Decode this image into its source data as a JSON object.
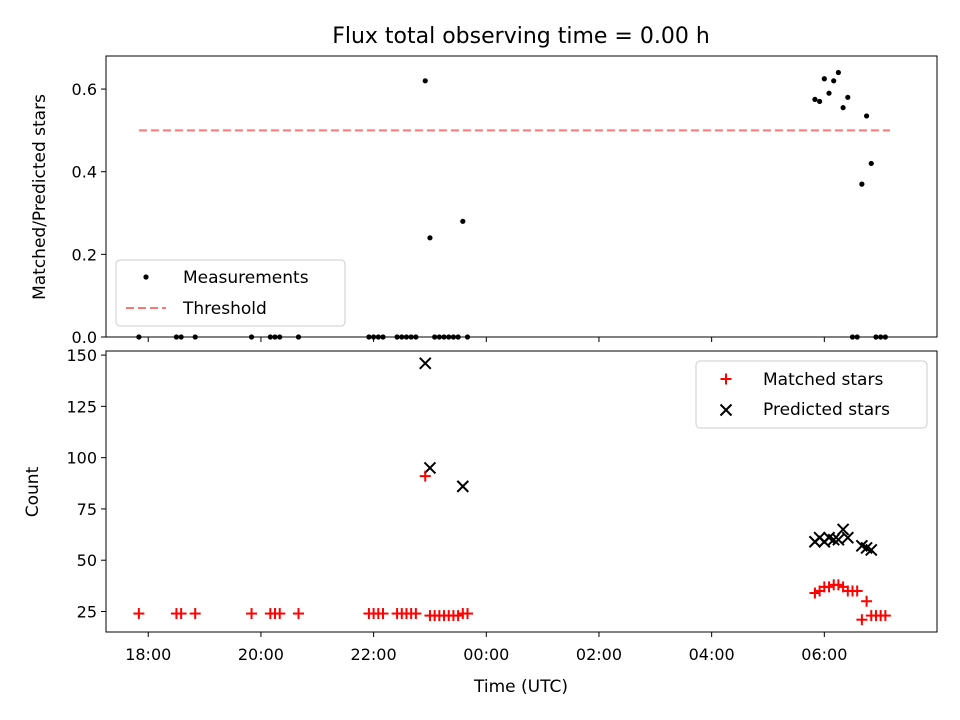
{
  "chart_data": [
    {
      "type": "scatter",
      "title": "Flux total observing time = 0.00 h",
      "ylabel": "Matched/Predicted stars",
      "xlabel": "",
      "ylim": [
        0,
        0.68
      ],
      "yticks": [
        "0.0",
        "0.2",
        "0.4",
        "0.6"
      ],
      "ytick_values": [
        0,
        0.2,
        0.4,
        0.6
      ],
      "legend": {
        "placement": "lower-left",
        "entries": [
          "Measurements",
          "Threshold"
        ]
      },
      "threshold": {
        "name": "Threshold",
        "value": 0.5,
        "x_range": [
          "17:50",
          "07:10"
        ],
        "color": "#ff7777"
      },
      "series": [
        {
          "name": "Measurements",
          "color": "#000000",
          "points": [
            [
              "17:50",
              0.0
            ],
            [
              "18:30",
              0.0
            ],
            [
              "18:35",
              0.0
            ],
            [
              "18:50",
              0.0
            ],
            [
              "19:50",
              0.0
            ],
            [
              "20:10",
              0.0
            ],
            [
              "20:15",
              0.0
            ],
            [
              "20:20",
              0.0
            ],
            [
              "20:40",
              0.0
            ],
            [
              "21:55",
              0.0
            ],
            [
              "22:00",
              0.0
            ],
            [
              "22:05",
              0.0
            ],
            [
              "22:10",
              0.0
            ],
            [
              "22:25",
              0.0
            ],
            [
              "22:30",
              0.0
            ],
            [
              "22:35",
              0.0
            ],
            [
              "22:40",
              0.0
            ],
            [
              "22:45",
              0.0
            ],
            [
              "22:55",
              0.62
            ],
            [
              "23:00",
              0.24
            ],
            [
              "23:05",
              0.0
            ],
            [
              "23:10",
              0.0
            ],
            [
              "23:15",
              0.0
            ],
            [
              "23:20",
              0.0
            ],
            [
              "23:25",
              0.0
            ],
            [
              "23:30",
              0.0
            ],
            [
              "23:35",
              0.28
            ],
            [
              "23:40",
              0.0
            ],
            [
              "05:50",
              0.575
            ],
            [
              "05:55",
              0.57
            ],
            [
              "06:00",
              0.625
            ],
            [
              "06:05",
              0.59
            ],
            [
              "06:10",
              0.62
            ],
            [
              "06:15",
              0.64
            ],
            [
              "06:20",
              0.555
            ],
            [
              "06:25",
              0.58
            ],
            [
              "06:30",
              0.0
            ],
            [
              "06:35",
              0.0
            ],
            [
              "06:40",
              0.37
            ],
            [
              "06:45",
              0.535
            ],
            [
              "06:50",
              0.42
            ],
            [
              "06:55",
              0.0
            ],
            [
              "07:00",
              0.0
            ],
            [
              "07:05",
              0.0
            ]
          ]
        }
      ]
    },
    {
      "type": "scatter",
      "title": "",
      "ylabel": "Count",
      "xlabel": "Time (UTC)",
      "ylim": [
        15,
        152
      ],
      "yticks": [
        "25",
        "50",
        "75",
        "100",
        "125",
        "150"
      ],
      "ytick_values": [
        25,
        50,
        75,
        100,
        125,
        150
      ],
      "xlim": [
        "17:15",
        "08:00"
      ],
      "xticks": [
        "18:00",
        "20:00",
        "22:00",
        "00:00",
        "02:00",
        "04:00",
        "06:00"
      ],
      "legend": {
        "placement": "upper-right",
        "entries": [
          "Matched stars",
          "Predicted stars"
        ]
      },
      "series": [
        {
          "name": "Matched stars",
          "marker": "plus",
          "color": "#ff0000",
          "points": [
            [
              "17:50",
              24
            ],
            [
              "18:30",
              24
            ],
            [
              "18:35",
              24
            ],
            [
              "18:50",
              24
            ],
            [
              "19:50",
              24
            ],
            [
              "20:10",
              24
            ],
            [
              "20:15",
              24
            ],
            [
              "20:20",
              24
            ],
            [
              "20:40",
              24
            ],
            [
              "21:55",
              24
            ],
            [
              "22:00",
              24
            ],
            [
              "22:05",
              24
            ],
            [
              "22:10",
              24
            ],
            [
              "22:25",
              24
            ],
            [
              "22:30",
              24
            ],
            [
              "22:35",
              24
            ],
            [
              "22:40",
              24
            ],
            [
              "22:45",
              24
            ],
            [
              "22:55",
              91
            ],
            [
              "23:00",
              23
            ],
            [
              "23:05",
              23
            ],
            [
              "23:10",
              23
            ],
            [
              "23:15",
              23
            ],
            [
              "23:20",
              23
            ],
            [
              "23:25",
              23
            ],
            [
              "23:30",
              23
            ],
            [
              "23:35",
              24
            ],
            [
              "23:40",
              24
            ],
            [
              "05:50",
              34
            ],
            [
              "05:55",
              35
            ],
            [
              "06:00",
              37
            ],
            [
              "06:05",
              37
            ],
            [
              "06:10",
              38
            ],
            [
              "06:15",
              38
            ],
            [
              "06:20",
              37
            ],
            [
              "06:25",
              35
            ],
            [
              "06:30",
              35
            ],
            [
              "06:35",
              35
            ],
            [
              "06:40",
              21
            ],
            [
              "06:45",
              30
            ],
            [
              "06:50",
              23
            ],
            [
              "06:55",
              23
            ],
            [
              "07:00",
              23
            ],
            [
              "07:05",
              23
            ]
          ]
        },
        {
          "name": "Predicted stars",
          "marker": "x",
          "color": "#000000",
          "points": [
            [
              "22:55",
              146
            ],
            [
              "23:00",
              95
            ],
            [
              "23:35",
              86
            ],
            [
              "05:50",
              59
            ],
            [
              "05:55",
              61
            ],
            [
              "06:00",
              59
            ],
            [
              "06:05",
              61
            ],
            [
              "06:10",
              60
            ],
            [
              "06:15",
              60
            ],
            [
              "06:20",
              65
            ],
            [
              "06:25",
              61
            ],
            [
              "06:40",
              57
            ],
            [
              "06:45",
              56
            ],
            [
              "06:50",
              55
            ]
          ]
        }
      ]
    }
  ]
}
